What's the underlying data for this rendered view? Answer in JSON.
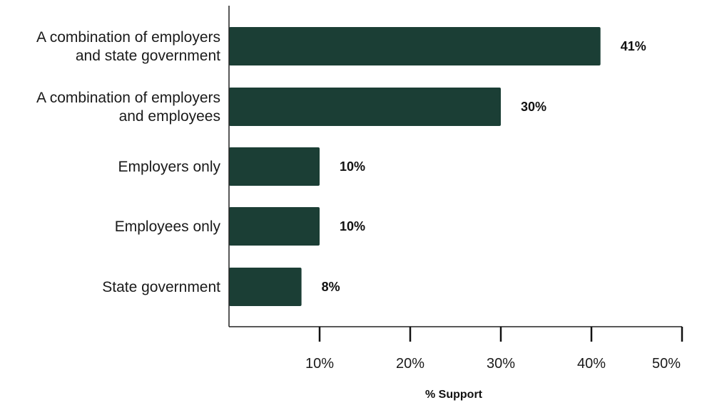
{
  "chart_data": {
    "type": "bar",
    "orientation": "horizontal",
    "categories": [
      [
        "A combination of employers",
        "and state government"
      ],
      [
        "A combination of employers",
        "and employees"
      ],
      [
        "Employers only"
      ],
      [
        "Employees only"
      ],
      [
        "State government"
      ]
    ],
    "values": [
      41,
      30,
      10,
      10,
      8
    ],
    "value_labels": [
      "41%",
      "30%",
      "10%",
      "10%",
      "8%"
    ],
    "xlabel": "% Support",
    "xlim": [
      0,
      50
    ],
    "xticks": [
      10,
      20,
      30,
      40,
      50
    ],
    "xtick_labels": [
      "10%",
      "20%",
      "30%",
      "40%",
      "50%"
    ],
    "bar_color": "#1b3e35",
    "grid": false,
    "legend": "none"
  }
}
